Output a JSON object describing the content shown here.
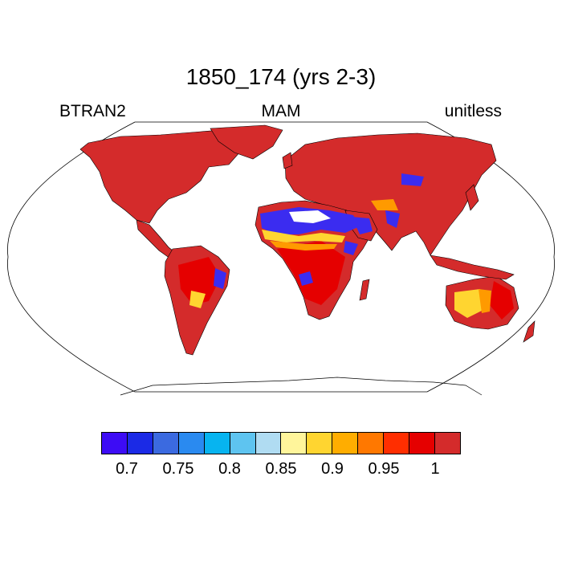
{
  "title": "1850_174 (yrs 2-3)",
  "left_label": "BTRAN2",
  "center_label": "MAM",
  "right_label": "unitless",
  "colorbar": {
    "colors": [
      "#3d0cf5",
      "#1b2ae6",
      "#3b6ae0",
      "#2a8af0",
      "#07b4f0",
      "#5ec4f0",
      "#b0dcf2",
      "#fff59b",
      "#ffd530",
      "#ffad00",
      "#ff7800",
      "#ff2e00",
      "#e50000",
      "#d42b2b"
    ],
    "tick_labels": [
      "0.7",
      "0.75",
      "0.8",
      "0.85",
      "0.9",
      "0.95",
      "1"
    ]
  },
  "colors": {
    "land_default": "#d42b2b",
    "land_deep": "#e50000",
    "dry_blue": "#3b2cf0",
    "semi_yellow": "#ffd530",
    "orange": "#ff9a00",
    "coast": "#000000"
  }
}
